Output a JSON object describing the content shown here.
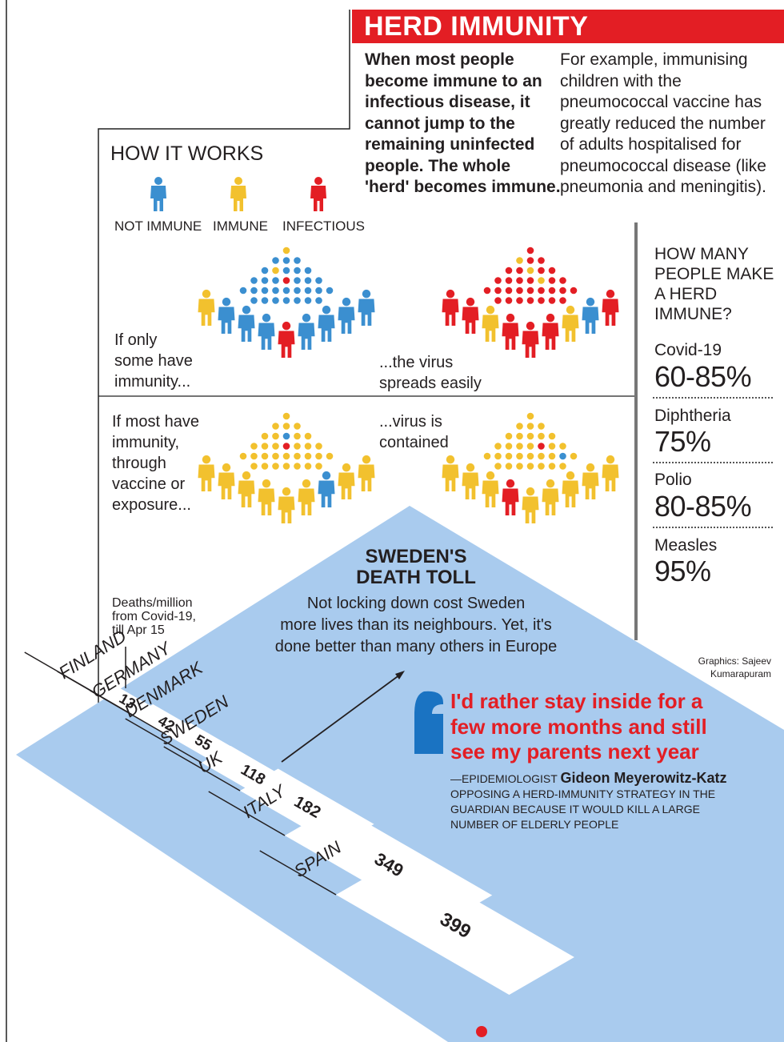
{
  "header": {
    "title": "HERD IMMUNITY",
    "intro_bold": [
      "When most people",
      "become immune to an",
      "infectious disease, it",
      "cannot jump to the",
      "remaining uninfected",
      "people. The whole",
      "'herd' becomes immune."
    ],
    "intro_regular": [
      "For example, immunising",
      "children with the",
      "pneumococcal vaccine has",
      "greatly reduced the number",
      "of adults hospitalised for",
      "pneumococcal disease (like",
      "pneumonia and meningitis)."
    ]
  },
  "how_it_works": {
    "title": "HOW IT WORKS",
    "legend": [
      {
        "label": "NOT IMMUNE",
        "color": "#3b8fd0"
      },
      {
        "label": "IMMUNE",
        "color": "#f2c12e"
      },
      {
        "label": "INFECTIOUS",
        "color": "#e31e24"
      }
    ],
    "captions": {
      "some_immune": [
        "If only",
        "some have",
        "immunity..."
      ],
      "spreads": [
        "...the virus",
        "spreads easily"
      ],
      "most_immune": [
        "If most have",
        "immunity,",
        "through",
        "vaccine or",
        "exposure..."
      ],
      "contained": [
        "...virus is",
        "contained"
      ]
    }
  },
  "herd_threshold": {
    "title": [
      "HOW MANY",
      "PEOPLE MAKE",
      "A HERD",
      "IMMUNE?"
    ],
    "items": [
      {
        "disease": "Covid-19",
        "value": "60-85%"
      },
      {
        "disease": "Diphtheria",
        "value": "75%"
      },
      {
        "disease": "Polio",
        "value": "80-85%"
      },
      {
        "disease": "Measles",
        "value": "95%"
      }
    ]
  },
  "sweden": {
    "title": [
      "SWEDEN'S",
      "DEATH TOLL"
    ],
    "subtitle": [
      "Not locking down cost Sweden",
      "more lives than its neighbours. Yet, it's",
      "done better than many others in Europe"
    ],
    "deaths_label": [
      "Deaths/million",
      "from Covid-19,",
      "till Apr 15"
    ]
  },
  "credit": [
    "Graphics: Sajeev",
    "Kumarapuram"
  ],
  "quote": {
    "text": [
      "I'd rather stay inside for a",
      "few more months and still",
      "see my parents next year"
    ],
    "attribution_prefix": "—EPIDEMIOLOGIST ",
    "attribution_name": "Gideon Meyerowitz-Katz",
    "attribution_rest": [
      "OPPOSING A HERD-IMMUNITY STRATEGY IN THE",
      "GUARDIAN BECAUSE IT WOULD KILL A LARGE",
      "NUMBER OF ELDERLY PEOPLE"
    ]
  },
  "colors": {
    "red": "#e31e24",
    "blue": "#3b8fd0",
    "yellow": "#f2c12e",
    "panel": "#a9cbee"
  },
  "chart_data": {
    "type": "bar",
    "title": "SWEDEN'S DEATH TOLL",
    "ylabel": "Deaths/million from Covid-19, till Apr 15",
    "categories": [
      "FINLAND",
      "GERMANY",
      "DENMARK",
      "SWEDEN",
      "UK",
      "ITALY",
      "SPAIN"
    ],
    "values": [
      13,
      42,
      55,
      118,
      182,
      349,
      399
    ],
    "labels": [
      "13",
      "42",
      "55",
      "118",
      "182",
      "349",
      "399"
    ]
  }
}
